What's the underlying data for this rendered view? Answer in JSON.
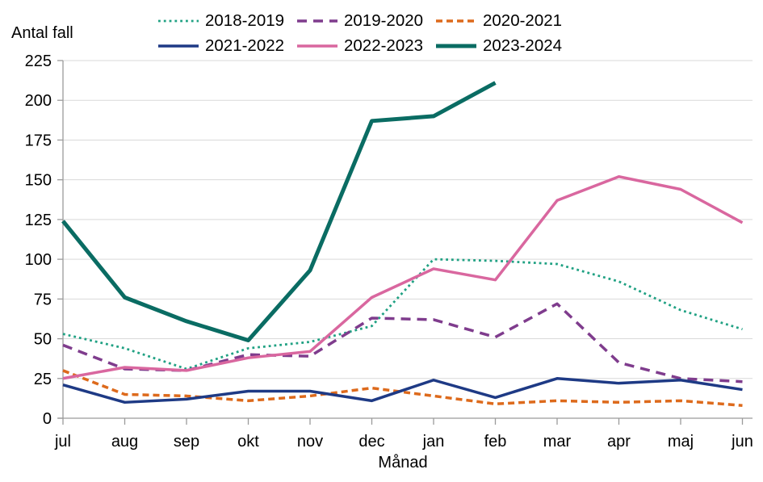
{
  "figure": {
    "y_axis_title": "Antal fall",
    "x_axis_title": "Månad"
  },
  "chart_data": {
    "type": "line",
    "title": "",
    "ylabel": "Antal fall",
    "xlabel": "Månad",
    "categories": [
      "jul",
      "aug",
      "sep",
      "okt",
      "nov",
      "dec",
      "jan",
      "feb",
      "mar",
      "apr",
      "maj",
      "jun"
    ],
    "y_ticks": [
      0,
      25,
      50,
      75,
      100,
      125,
      150,
      175,
      200,
      225
    ],
    "ylim": [
      0,
      225
    ],
    "grid": true,
    "legend_position": "top",
    "colors": {
      "grid": "#d9d9d9",
      "axis": "#9b9b9b",
      "text": "#000000"
    },
    "series": [
      {
        "name": "2018-2019",
        "color": "#20a183",
        "style": "dotted",
        "width": 2.8,
        "values": [
          53,
          44,
          31,
          44,
          48,
          58,
          100,
          99,
          97,
          86,
          68,
          56
        ]
      },
      {
        "name": "2019-2020",
        "color": "#7f3c8d",
        "style": "dashed",
        "width": 3.5,
        "values": [
          46,
          31,
          30,
          40,
          39,
          63,
          62,
          51,
          72,
          35,
          25,
          23
        ]
      },
      {
        "name": "2020-2021",
        "color": "#dd6a1c",
        "style": "short-dashed",
        "width": 3.5,
        "values": [
          30,
          15,
          14,
          11,
          14,
          19,
          14,
          9,
          11,
          10,
          11,
          8
        ]
      },
      {
        "name": "2021-2022",
        "color": "#1e3a85",
        "style": "solid",
        "width": 3.5,
        "values": [
          21,
          10,
          12,
          17,
          17,
          11,
          24,
          13,
          25,
          22,
          24,
          18
        ]
      },
      {
        "name": "2022-2023",
        "color": "#d9679f",
        "style": "solid",
        "width": 3.5,
        "values": [
          25,
          32,
          30,
          38,
          42,
          76,
          94,
          87,
          137,
          152,
          144,
          123
        ]
      },
      {
        "name": "2023-2024",
        "color": "#0a6c63",
        "style": "solid",
        "width": 5,
        "values": [
          124,
          76,
          61,
          49,
          93,
          187,
          190,
          211
        ]
      }
    ]
  }
}
